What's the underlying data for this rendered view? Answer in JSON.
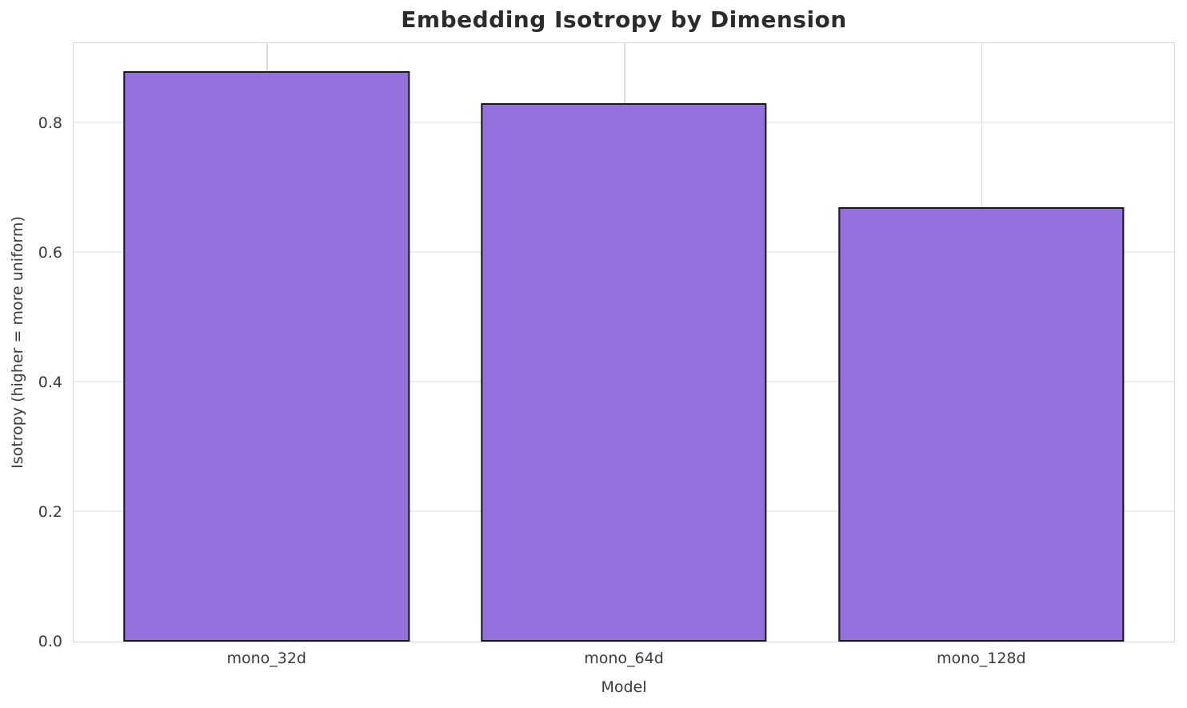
{
  "chart_data": {
    "type": "bar",
    "title": "Embedding Isotropy by Dimension",
    "xlabel": "Model",
    "ylabel": "Isotropy (higher = more uniform)",
    "categories": [
      "mono_32d",
      "mono_64d",
      "mono_128d"
    ],
    "values": [
      0.88,
      0.83,
      0.67
    ],
    "yticks": [
      0.0,
      0.2,
      0.4,
      0.6,
      0.8
    ],
    "ylim": [
      0,
      0.923
    ],
    "xlim": [
      -0.54,
      2.54
    ],
    "bar_width": 0.8,
    "bar_color": "#9370DB",
    "bar_edge_color": "#1a1a1a",
    "grid": true,
    "legend": "none"
  }
}
